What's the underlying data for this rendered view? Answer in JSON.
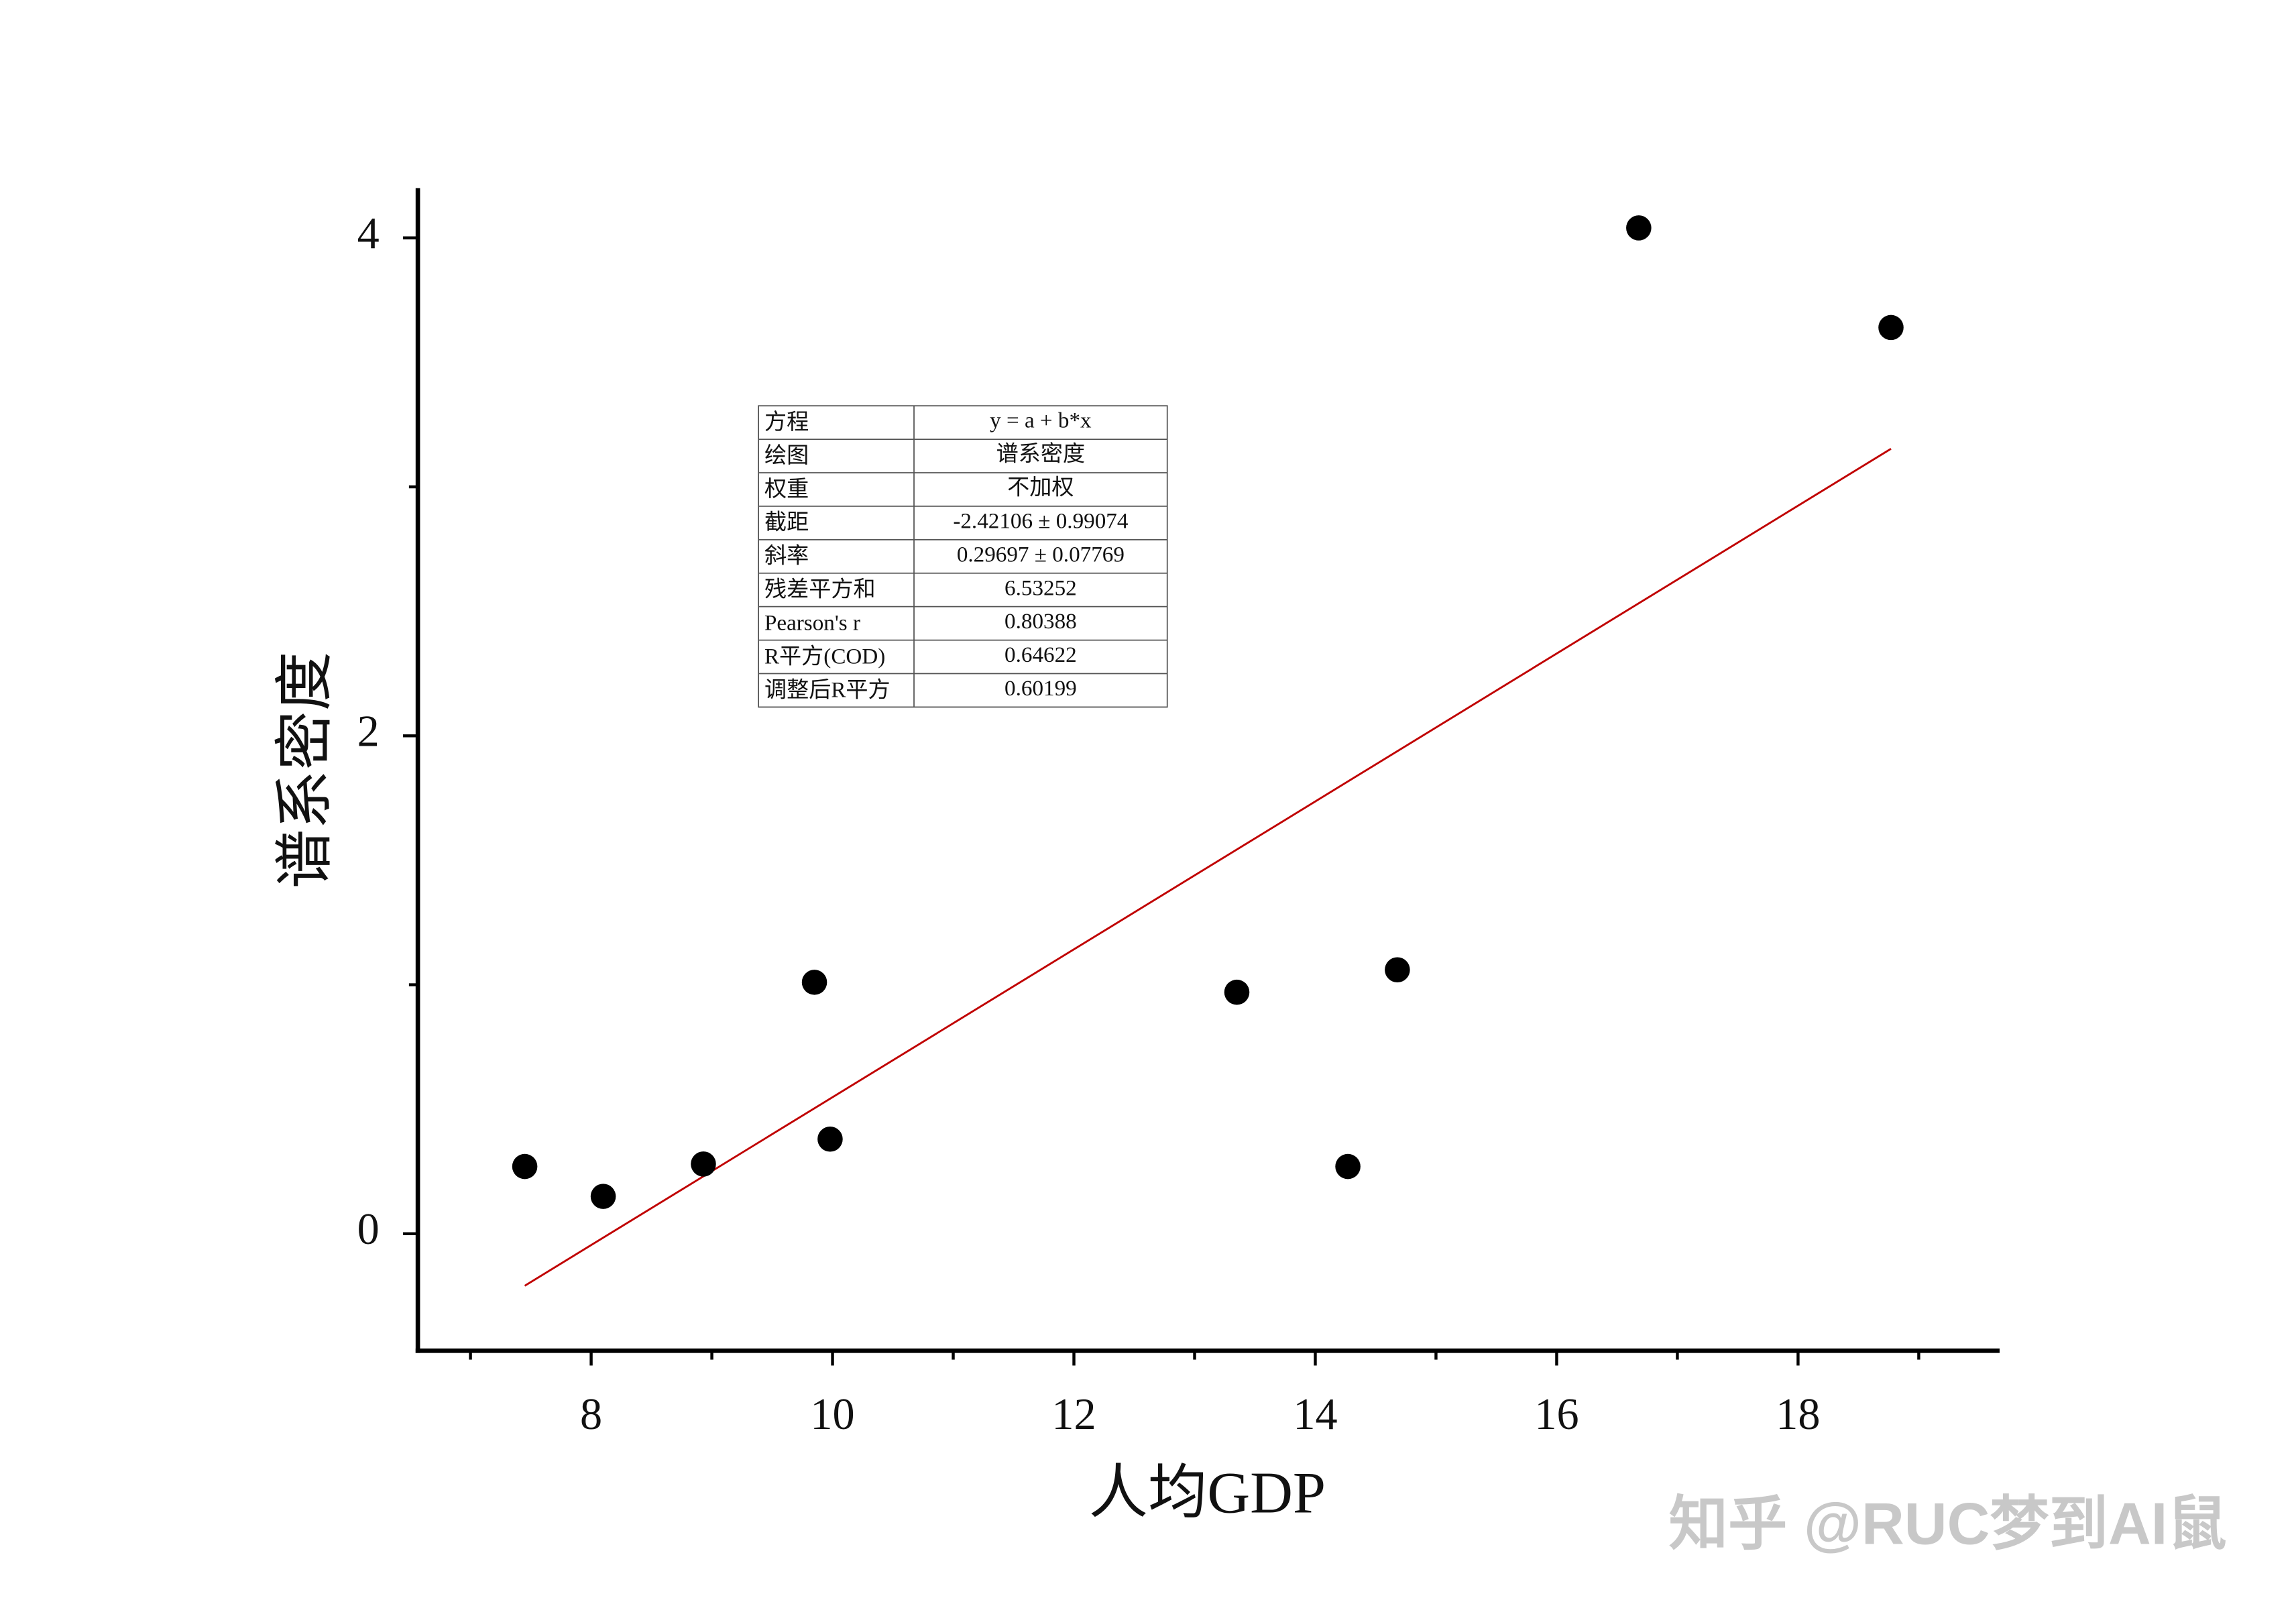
{
  "chart_data": {
    "type": "scatter",
    "x_label": "人均GDP",
    "y_label": "谱系密度",
    "x": [
      7.45,
      8.1,
      8.93,
      9.85,
      9.98,
      13.35,
      14.27,
      14.68,
      16.68,
      18.77
    ],
    "series": [
      {
        "name": "谱系密度",
        "color": "#000000",
        "values": [
          0.27,
          0.15,
          0.28,
          1.01,
          0.38,
          0.97,
          0.27,
          1.06,
          4.04,
          3.64
        ]
      }
    ],
    "fit": {
      "color": "#c00000",
      "x": [
        7.45,
        18.77
      ],
      "values": [
        -0.209,
        3.153
      ]
    },
    "xlim": [
      6.564,
      19.67
    ],
    "ylim": [
      -0.47,
      4.2
    ],
    "xticks": [
      8,
      10,
      12,
      14,
      16,
      18
    ],
    "yticks": [
      0,
      2,
      4
    ],
    "x_minor_ticks": [
      7,
      9,
      11,
      13,
      15,
      17,
      19
    ],
    "y_minor_ticks": [
      1,
      3
    ],
    "table": {
      "rows": [
        [
          "方程",
          "y = a + b*x"
        ],
        [
          "绘图",
          "谱系密度"
        ],
        [
          "权重",
          "不加权"
        ],
        [
          "截距",
          "-2.42106 ± 0.99074"
        ],
        [
          "斜率",
          "0.29697 ± 0.07769"
        ],
        [
          "残差平方和",
          "6.53252"
        ],
        [
          "Pearson's r",
          "0.80388"
        ],
        [
          "R平方(COD)",
          "0.64622"
        ],
        [
          "调整后R平方",
          "0.60199"
        ]
      ]
    },
    "watermark": "知乎 @RUC梦到AI鼠"
  }
}
